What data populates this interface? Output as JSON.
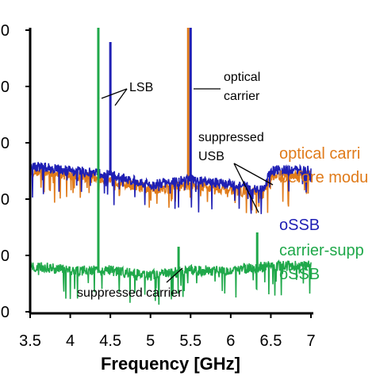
{
  "chart_data": {
    "type": "line",
    "title": "",
    "xlabel": "Frequency [GHz]",
    "ylabel": "",
    "xlim": [
      3.5,
      7
    ],
    "ylim": [
      -100,
      -40
    ],
    "x_ticks": [
      "3.5",
      "4",
      "4.5",
      "5",
      "5.5",
      "6",
      "6.5",
      "7"
    ],
    "y_ticks": [
      "0",
      "0",
      "0",
      "0",
      "0",
      "0"
    ],
    "grid": false,
    "series": [
      {
        "name": "optical carrier before modulation",
        "color": "#E07B1A",
        "peaks": [
          {
            "x": 5.47,
            "y": -40
          }
        ],
        "baseline_points": [
          [
            3.5,
            -70
          ],
          [
            4.0,
            -71
          ],
          [
            4.5,
            -72
          ],
          [
            5.0,
            -74
          ],
          [
            5.5,
            -73
          ],
          [
            6.0,
            -74
          ],
          [
            6.4,
            -75
          ],
          [
            6.5,
            -71
          ],
          [
            7.0,
            -71
          ]
        ]
      },
      {
        "name": "oSSB",
        "color": "#1F1FB4",
        "peaks": [
          {
            "x": 4.5,
            "y": -43
          },
          {
            "x": 5.5,
            "y": -40
          }
        ],
        "baseline_points": [
          [
            3.5,
            -69
          ],
          [
            4.0,
            -70
          ],
          [
            4.5,
            -71
          ],
          [
            5.0,
            -73
          ],
          [
            5.5,
            -72
          ],
          [
            6.0,
            -73
          ],
          [
            6.4,
            -74
          ],
          [
            6.5,
            -70
          ],
          [
            7.0,
            -70
          ]
        ]
      },
      {
        "name": "carrier-suppressed oSSB",
        "color": "#1FA84A",
        "peaks": [
          {
            "x": 4.35,
            "y": -40
          },
          {
            "x": 5.35,
            "y": -86
          },
          {
            "x": 6.33,
            "y": -83
          }
        ],
        "baseline_points": [
          [
            3.5,
            -90
          ],
          [
            4.0,
            -91
          ],
          [
            4.5,
            -91
          ],
          [
            5.0,
            -92
          ],
          [
            5.5,
            -91
          ],
          [
            6.0,
            -91
          ],
          [
            6.5,
            -90
          ],
          [
            7.0,
            -90
          ]
        ]
      }
    ],
    "annotations": [
      {
        "text": "LSB"
      },
      {
        "text": "optical carrier"
      },
      {
        "text": "suppressed USB"
      },
      {
        "text": "suppressed carrier"
      }
    ],
    "legend_entries": [
      {
        "text": "optical carri",
        "color": "#E07B1A"
      },
      {
        "text": "before modu",
        "color": "#E07B1A"
      },
      {
        "text": "oSSB",
        "color": "#1F1FB4"
      },
      {
        "text": "carrier-supp",
        "color": "#1FA84A"
      },
      {
        "text": "oSSB",
        "color": "#1FA84A"
      }
    ]
  }
}
